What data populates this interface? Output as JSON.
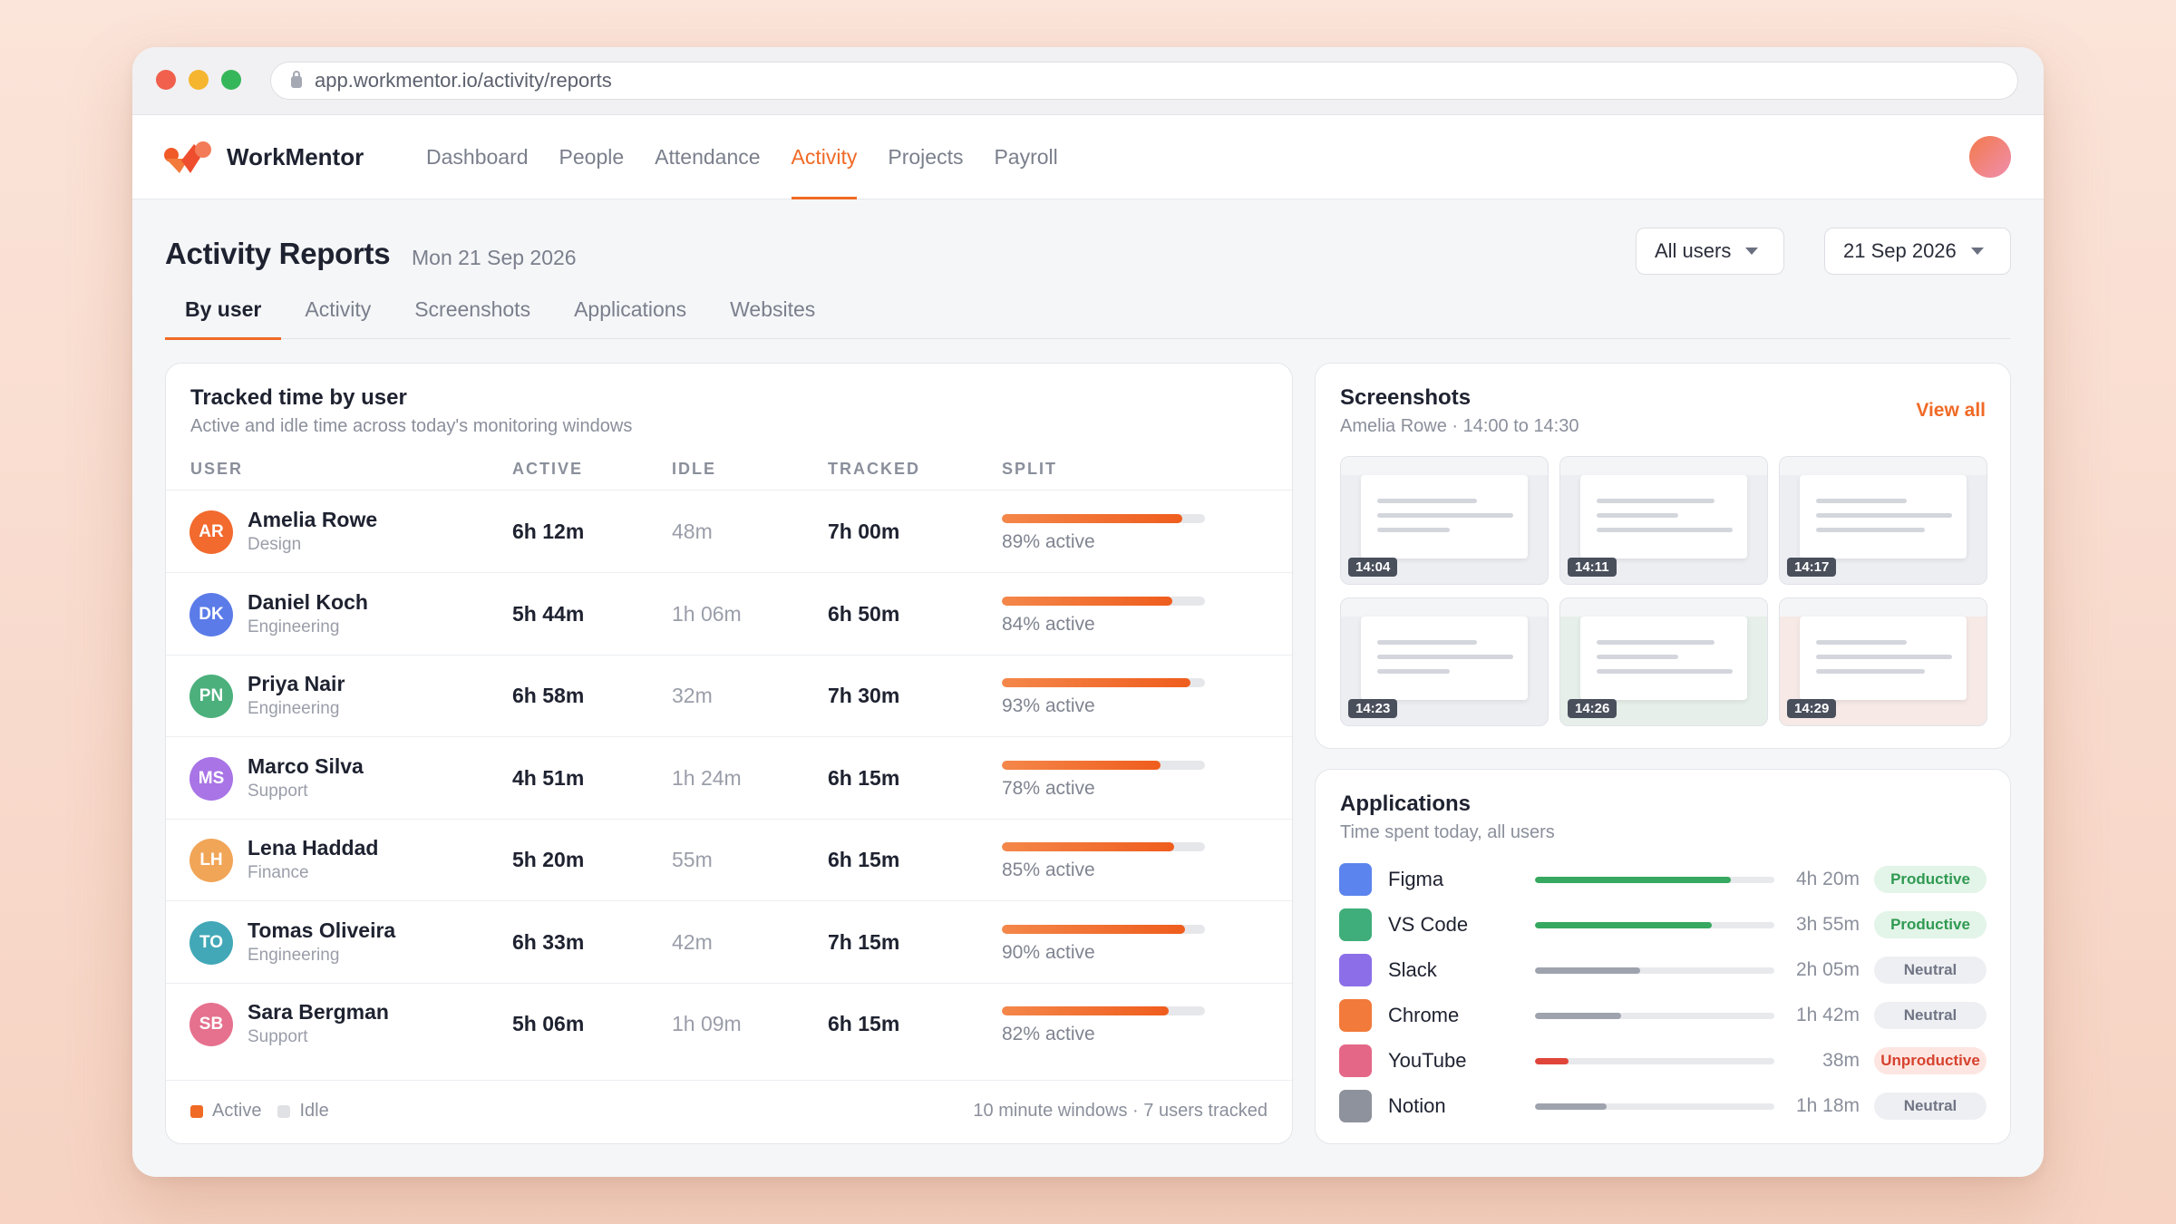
{
  "browser": {
    "url": "app.workmentor.io/activity/reports"
  },
  "app": {
    "brand": "WorkMentor",
    "nav": [
      "Dashboard",
      "People",
      "Attendance",
      "Activity",
      "Projects",
      "Payroll"
    ],
    "active_nav": "Activity"
  },
  "page": {
    "title": "Activity Reports",
    "date": "Mon 21 Sep 2026",
    "user_filter": "All users",
    "date_filter": "21 Sep 2026",
    "tabs": [
      "By user",
      "Activity",
      "Screenshots",
      "Applications",
      "Websites"
    ],
    "active_tab": "By user"
  },
  "users_card": {
    "title": "Tracked time by user",
    "subtitle": "Active and idle time across today's monitoring windows",
    "columns": [
      "USER",
      "ACTIVE",
      "IDLE",
      "TRACKED",
      "SPLIT"
    ],
    "rows": [
      {
        "initials": "AR",
        "name": "Amelia Rowe",
        "dept": "Design",
        "active": "6h 12m",
        "idle": "48m",
        "tracked": "7h 00m",
        "active_pct": 89,
        "split_label": "89% active",
        "avatar_color": "#f26a2e"
      },
      {
        "initials": "DK",
        "name": "Daniel Koch",
        "dept": "Engineering",
        "active": "5h 44m",
        "idle": "1h 06m",
        "tracked": "6h 50m",
        "active_pct": 84,
        "split_label": "84% active",
        "avatar_color": "#5b7be8"
      },
      {
        "initials": "PN",
        "name": "Priya Nair",
        "dept": "Engineering",
        "active": "6h 58m",
        "idle": "32m",
        "tracked": "7h 30m",
        "active_pct": 93,
        "split_label": "93% active",
        "avatar_color": "#4cb07c"
      },
      {
        "initials": "MS",
        "name": "Marco Silva",
        "dept": "Support",
        "active": "4h 51m",
        "idle": "1h 24m",
        "tracked": "6h 15m",
        "active_pct": 78,
        "split_label": "78% active",
        "avatar_color": "#a874e6"
      },
      {
        "initials": "LH",
        "name": "Lena Haddad",
        "dept": "Finance",
        "active": "5h 20m",
        "idle": "55m",
        "tracked": "6h 15m",
        "active_pct": 85,
        "split_label": "85% active",
        "avatar_color": "#f1a557"
      },
      {
        "initials": "TO",
        "name": "Tomas Oliveira",
        "dept": "Engineering",
        "active": "6h 33m",
        "idle": "42m",
        "tracked": "7h 15m",
        "active_pct": 90,
        "split_label": "90% active",
        "avatar_color": "#42a8b8"
      },
      {
        "initials": "SB",
        "name": "Sara Bergman",
        "dept": "Support",
        "active": "5h 06m",
        "idle": "1h 09m",
        "tracked": "6h 15m",
        "active_pct": 82,
        "split_label": "82% active",
        "avatar_color": "#e5718e"
      }
    ],
    "legend": [
      {
        "label": "Active",
        "color": "#f06a26"
      },
      {
        "label": "Idle",
        "color": "#dfe1e5"
      }
    ],
    "footnote": "10 minute windows · 7 users tracked"
  },
  "screenshots_card": {
    "title": "Screenshots",
    "subtitle": "Amelia Rowe · 14:00 to 14:30",
    "view_all": "View all",
    "thumbs": [
      {
        "time": "14:04",
        "tint": "#eceef2"
      },
      {
        "time": "14:11",
        "tint": "#eceef2"
      },
      {
        "time": "14:17",
        "tint": "#eceef2"
      },
      {
        "time": "14:23",
        "tint": "#eceef2"
      },
      {
        "time": "14:26",
        "tint": "#e6efe9"
      },
      {
        "time": "14:29",
        "tint": "#f6e9e6"
      }
    ]
  },
  "apps_card": {
    "title": "Applications",
    "subtitle": "Time spent today, all users",
    "apps": [
      {
        "name": "Figma",
        "time": "4h 20m",
        "share": 0.82,
        "status": "Productive",
        "kind": "productive",
        "icon_color": "#5b84ee",
        "bar_color": "#36a85f"
      },
      {
        "name": "VS Code",
        "time": "3h 55m",
        "share": 0.74,
        "status": "Productive",
        "kind": "productive",
        "icon_color": "#3fae7a",
        "bar_color": "#36a85f"
      },
      {
        "name": "Slack",
        "time": "2h 05m",
        "share": 0.44,
        "status": "Neutral",
        "kind": "neutral",
        "icon_color": "#8b6ee8",
        "bar_color": "#9ea3ae"
      },
      {
        "name": "Chrome",
        "time": "1h 42m",
        "share": 0.36,
        "status": "Neutral",
        "kind": "neutral",
        "icon_color": "#f27a3a",
        "bar_color": "#9ea3ae"
      },
      {
        "name": "YouTube",
        "time": "38m",
        "share": 0.14,
        "status": "Unproductive",
        "kind": "unproductive",
        "icon_color": "#e46787",
        "bar_color": "#e0453a"
      },
      {
        "name": "Notion",
        "time": "1h 18m",
        "share": 0.3,
        "status": "Neutral",
        "kind": "neutral",
        "icon_color": "#8e929c",
        "bar_color": "#9ea3ae"
      }
    ]
  }
}
